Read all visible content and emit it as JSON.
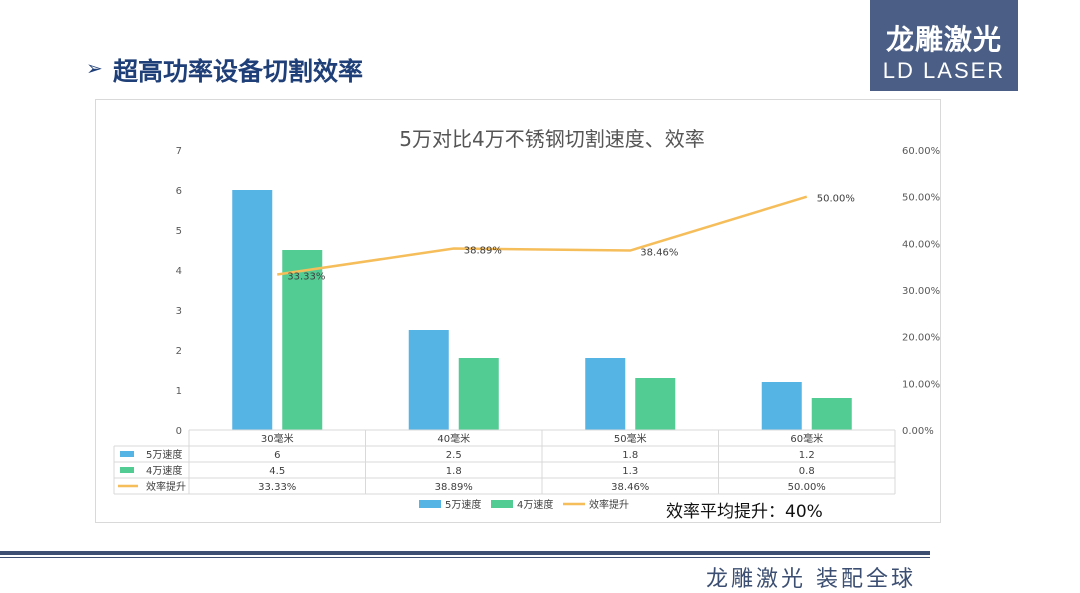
{
  "slide": {
    "arrow_glyph": "➢",
    "title": "超高功率设备切割效率",
    "logo_cn": "龙雕激光",
    "logo_en": "LD LASER",
    "footer": "龙雕激光 装配全球",
    "avg_note": "效率平均提升：40%"
  },
  "chart_data": {
    "type": "bar",
    "title": "5万对比4万不锈钢切割速度、效率",
    "categories": [
      "30毫米",
      "40毫米",
      "50毫米",
      "60毫米"
    ],
    "series": [
      {
        "name": "5万速度",
        "type": "bar",
        "axis": "left",
        "color": "#56b4e5",
        "values": [
          6,
          2.5,
          1.8,
          1.2
        ],
        "table_values": [
          "6",
          "2.5",
          "1.8",
          "1.2"
        ]
      },
      {
        "name": "4万速度",
        "type": "bar",
        "axis": "left",
        "color": "#53cc93",
        "values": [
          4.5,
          1.8,
          1.3,
          0.8
        ],
        "table_values": [
          "4.5",
          "1.8",
          "1.3",
          "0.8"
        ]
      },
      {
        "name": "效率提升",
        "type": "line",
        "axis": "right",
        "color": "#f6bd5b",
        "values": [
          33.33,
          38.89,
          38.46,
          50.0
        ],
        "table_values": [
          "33.33%",
          "38.89%",
          "38.46%",
          "50.00%"
        ]
      }
    ],
    "y_left": {
      "min": 0,
      "max": 7,
      "ticks": [
        "0",
        "1",
        "2",
        "3",
        "4",
        "5",
        "6",
        "7"
      ]
    },
    "y_right": {
      "min": 0,
      "max": 60,
      "ticks": [
        "0.00%",
        "10.00%",
        "20.00%",
        "30.00%",
        "40.00%",
        "50.00%",
        "60.00%"
      ]
    },
    "data_labels": [
      "33.33%",
      "38.89%",
      "38.46%",
      "50.00%"
    ],
    "legend": [
      "5万速度",
      "4万速度",
      "效率提升"
    ],
    "legend_position": "bottom",
    "data_table": true
  }
}
